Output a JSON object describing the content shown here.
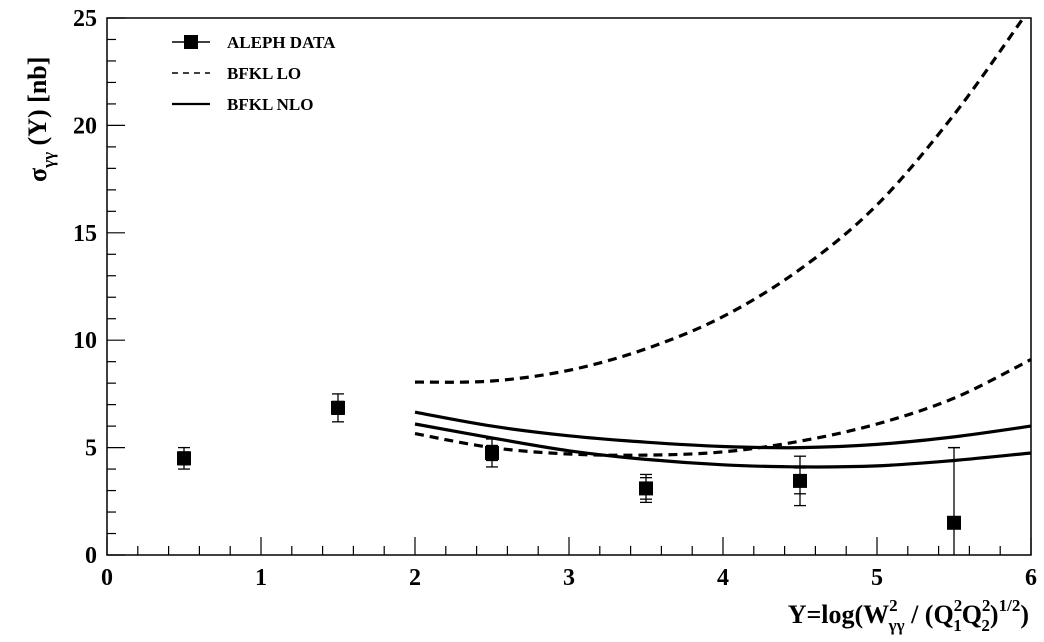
{
  "chart_data": {
    "type": "scatter",
    "xlim": [
      0,
      6
    ],
    "ylim": [
      0,
      25
    ],
    "x_ticks": [
      0,
      1,
      2,
      3,
      4,
      5,
      6
    ],
    "y_ticks": [
      0,
      5,
      10,
      15,
      20,
      25
    ],
    "x_tick_labels": [
      "0",
      "1",
      "2",
      "3",
      "4",
      "5",
      "6"
    ],
    "y_tick_labels": [
      "0",
      "5",
      "10",
      "15",
      "20",
      "25"
    ],
    "xlabel": "Y=log(Wγγ² / (Q₁²Q₂²)¹ᐟ²)",
    "ylabel": "σγγ (Y) [nb]",
    "legend_position": "top-left",
    "grid": false,
    "series": [
      {
        "name": "ALEPH DATA",
        "style": "markers",
        "x": [
          0.5,
          1.5,
          2.5,
          3.5,
          4.5,
          5.5
        ],
        "y": [
          4.5,
          6.85,
          4.75,
          3.1,
          3.45,
          1.5
        ],
        "err_stat_low": [
          0.3,
          0.3,
          0.35,
          0.5,
          0.6,
          1.5
        ],
        "err_stat_high": [
          0.3,
          0.3,
          0.35,
          0.5,
          0.6,
          3.5
        ],
        "err_tot_low": [
          0.5,
          0.65,
          0.65,
          0.65,
          1.15,
          1.5
        ],
        "err_tot_high": [
          0.5,
          0.65,
          0.65,
          0.65,
          1.15,
          3.5
        ]
      },
      {
        "name": "BFKL LO",
        "style": "dashed",
        "curves": [
          {
            "x": [
              2.0,
              2.5,
              3.0,
              3.5,
              4.0,
              4.5,
              5.0,
              5.5,
              5.95
            ],
            "y": [
              8.05,
              8.1,
              8.6,
              9.6,
              11.1,
              13.3,
              16.3,
              20.5,
              25.0
            ]
          },
          {
            "x": [
              2.0,
              2.5,
              3.0,
              3.5,
              4.0,
              4.5,
              5.0,
              5.5,
              6.0
            ],
            "y": [
              5.65,
              5.0,
              4.7,
              4.65,
              4.8,
              5.3,
              6.1,
              7.3,
              9.1
            ]
          }
        ]
      },
      {
        "name": "BFKL NLO",
        "style": "solid",
        "curves": [
          {
            "x": [
              2.0,
              2.5,
              3.0,
              3.5,
              4.0,
              4.5,
              5.0,
              5.5,
              6.0
            ],
            "y": [
              6.65,
              6.0,
              5.55,
              5.25,
              5.05,
              5.0,
              5.15,
              5.5,
              6.0
            ]
          },
          {
            "x": [
              2.0,
              2.5,
              3.0,
              3.5,
              4.0,
              4.5,
              5.0,
              5.5,
              6.0
            ],
            "y": [
              6.1,
              5.45,
              4.85,
              4.45,
              4.2,
              4.1,
              4.15,
              4.4,
              4.75
            ]
          }
        ]
      }
    ]
  }
}
